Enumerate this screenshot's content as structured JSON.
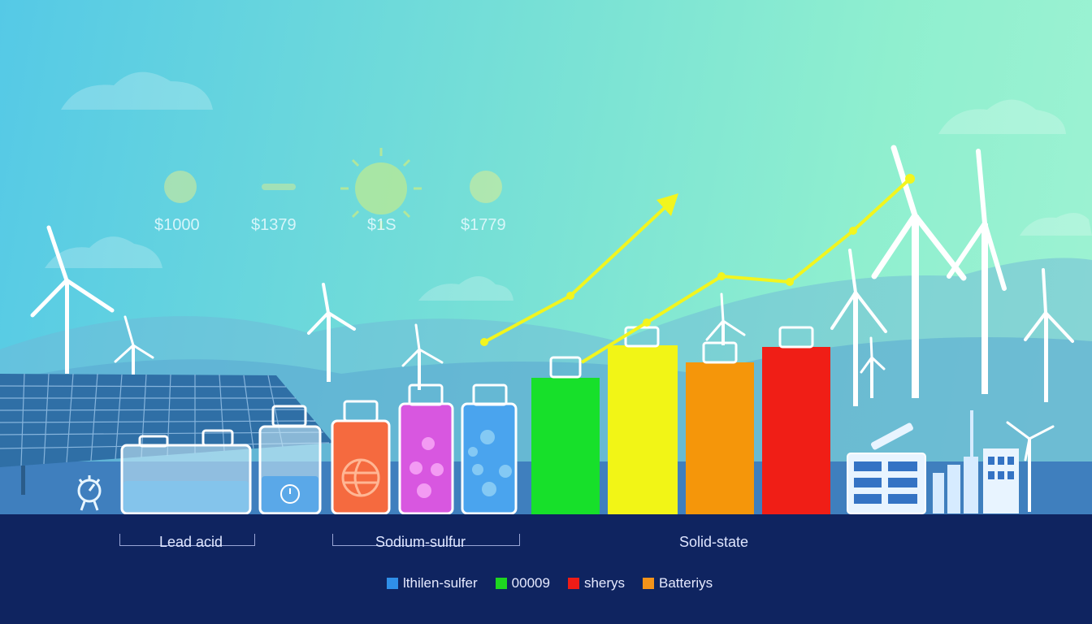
{
  "prices": [
    "$1000",
    "$1379",
    "$1S",
    "$1779"
  ],
  "category_labels": {
    "lead_acid": "Lead acid",
    "sodium_sulfur": "Sodium-sulfur",
    "solid_state": "Solid-state"
  },
  "legend": [
    {
      "label": "lthilen-sulfer",
      "color": "#2f8fe8"
    },
    {
      "label": "00009",
      "color": "#1ed620"
    },
    {
      "label": "sherys",
      "color": "#ee1c16"
    },
    {
      "label": "Batteriys",
      "color": "#f3931a"
    }
  ],
  "colors": {
    "ground": "#0f2460",
    "sea": "#3f7fbe",
    "trend_line": "#f2f51e",
    "bar_green": "#17e02a",
    "bar_yellow": "#f2f516",
    "bar_orange": "#f5960a",
    "bar_red": "#f01e16"
  }
}
